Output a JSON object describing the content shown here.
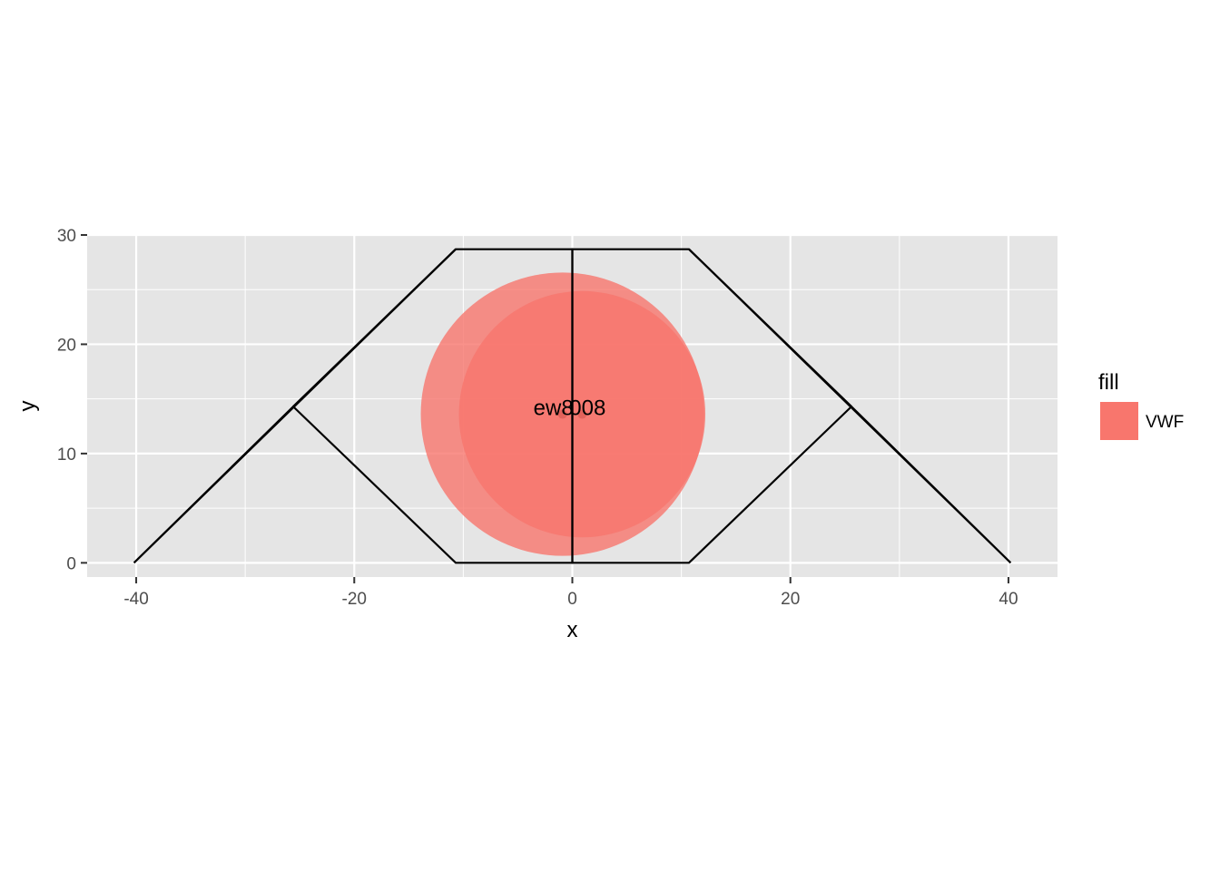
{
  "chart_data": {
    "type": "scatter",
    "xlabel": "x",
    "ylabel": "y",
    "xlim": [
      -44.5,
      44.5
    ],
    "ylim": [
      -1.3,
      30
    ],
    "x_ticks": [
      -40,
      -20,
      0,
      20,
      40
    ],
    "x_tick_labels": [
      "-40",
      "-20",
      "0",
      "20",
      "40"
    ],
    "y_ticks": [
      0,
      10,
      20,
      30
    ],
    "y_tick_labels": [
      "0",
      "10",
      "20",
      "30"
    ],
    "grid": true,
    "legend": {
      "title": "fill",
      "position": "right",
      "entries": [
        {
          "label": "VWF",
          "color": "#F8766D"
        }
      ]
    },
    "outline": [
      {
        "name": "left-wing",
        "points": [
          [
            -40.2,
            0
          ],
          [
            -10.7,
            28.7
          ],
          [
            0,
            28.7
          ],
          [
            0,
            0
          ],
          [
            -10.7,
            0
          ],
          [
            -25.6,
            14.3
          ],
          [
            -40.2,
            0
          ]
        ]
      },
      {
        "name": "right-wing",
        "points": [
          [
            40.2,
            0
          ],
          [
            10.7,
            28.7
          ],
          [
            0,
            28.7
          ],
          [
            0,
            0
          ],
          [
            10.7,
            0
          ],
          [
            25.6,
            14.3
          ],
          [
            40.2,
            0
          ]
        ]
      },
      {
        "name": "left-inner-link",
        "points": [
          [
            -25.6,
            14.3
          ],
          [
            -10.7,
            28.7
          ]
        ]
      },
      {
        "name": "right-inner-link",
        "points": [
          [
            25.6,
            14.3
          ],
          [
            10.7,
            28.7
          ]
        ]
      }
    ],
    "points": [
      {
        "x": -0.9,
        "y": 13.6,
        "radius": 13.0,
        "fill": "VWF",
        "label": "ew8"
      },
      {
        "x": 0.9,
        "y": 13.6,
        "radius": 11.3,
        "fill": "VWF",
        "label": "008"
      }
    ],
    "colors": {
      "panel": "#E5E5E5",
      "grid": "#FFFFFF",
      "fill": "#F8766D"
    }
  }
}
